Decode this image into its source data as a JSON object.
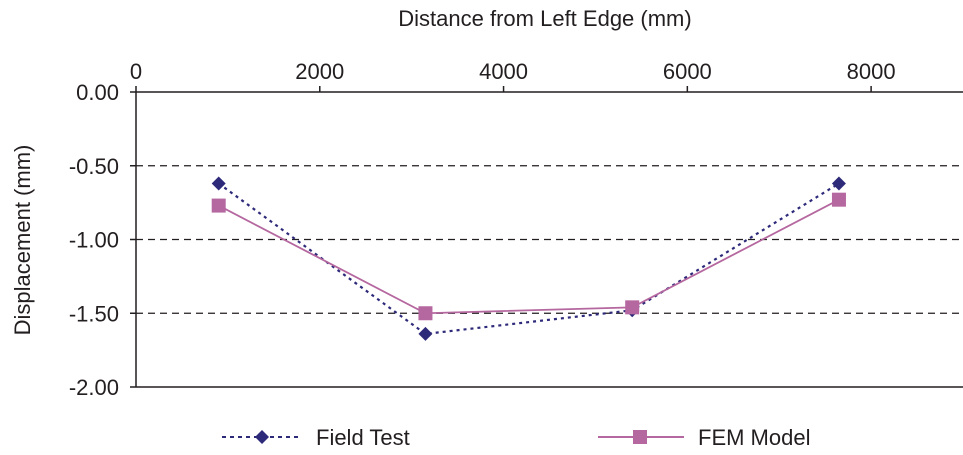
{
  "chart_data": {
    "type": "line",
    "xlabel": "Distance from Left Edge (mm)",
    "ylabel": "Displacement (mm)",
    "x_axis_position": "top",
    "xlim": [
      0,
      9000
    ],
    "ylim": [
      -2.0,
      0.0
    ],
    "x_ticks": [
      0,
      2000,
      4000,
      6000,
      8000
    ],
    "x_tick_labels": [
      "0",
      "2000",
      "4000",
      "6000",
      "8000"
    ],
    "y_ticks": [
      0.0,
      -0.5,
      -1.0,
      -1.5,
      -2.0
    ],
    "y_tick_labels": [
      "0.00",
      "-0.50",
      "-1.00",
      "-1.50",
      "-2.00"
    ],
    "grid": "horizontal dashed at -0.50, -1.00, -1.50",
    "legend_position": "bottom",
    "series": [
      {
        "name": "Field Test",
        "color": "#2e2a7a",
        "marker": "diamond",
        "line_style": "dotted",
        "x": [
          900,
          3150,
          5400,
          7650
        ],
        "y": [
          -0.62,
          -1.64,
          -1.48,
          -0.62
        ]
      },
      {
        "name": "FEM Model",
        "color": "#b5679f",
        "marker": "square",
        "line_style": "solid",
        "x": [
          900,
          3150,
          5400,
          7650
        ],
        "y": [
          -0.77,
          -1.5,
          -1.46,
          -0.73
        ]
      }
    ]
  }
}
